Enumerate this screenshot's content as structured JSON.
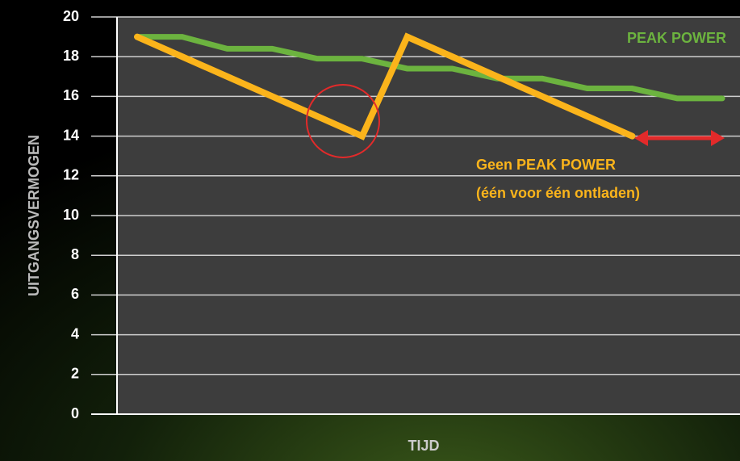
{
  "chart_data": {
    "type": "line",
    "y_label": "UITGANGSVERMOGEN",
    "x_label": "TIJD",
    "categories": [
      null,
      null,
      null,
      null,
      null,
      null,
      null,
      null,
      null,
      null,
      null,
      null,
      null,
      null
    ],
    "series": [
      {
        "name": "PEAK POWER",
        "color": "#6cb33f",
        "values": [
          19,
          19,
          18.4,
          18.4,
          17.9,
          17.9,
          17.4,
          17.4,
          16.9,
          16.9,
          16.4,
          16.4,
          15.9,
          15.9
        ]
      },
      {
        "name": "Geen PEAK POWER",
        "color": "#fbb41b",
        "values": [
          19,
          18,
          17,
          16,
          15,
          14,
          19,
          18,
          17,
          16,
          15,
          14,
          null,
          null
        ]
      }
    ],
    "annotation": "(één voor één ontladen)",
    "ylim": [
      0,
      20
    ],
    "yticks": [
      0,
      2,
      4,
      6,
      8,
      10,
      12,
      14,
      16,
      18,
      20
    ],
    "grid": true
  }
}
